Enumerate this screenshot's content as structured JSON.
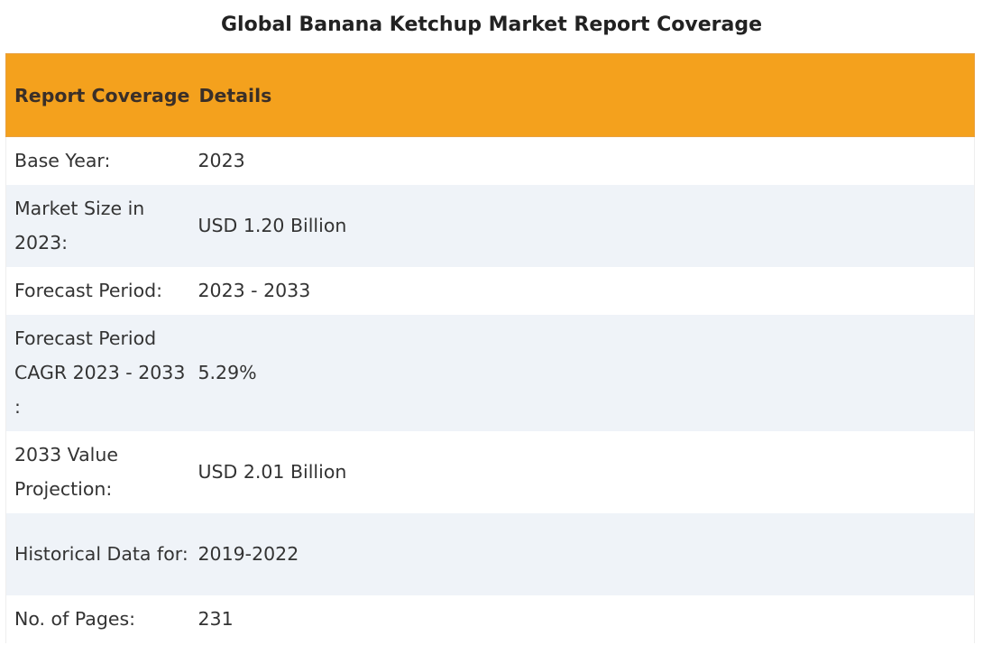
{
  "page": {
    "title": "Global Banana Ketchup Market Report Coverage"
  },
  "table": {
    "headers": {
      "col1": "Report Coverage",
      "col2": "Details"
    },
    "rows": [
      {
        "label": "Base Year:",
        "value": "2023"
      },
      {
        "label": "Market Size in 2023:",
        "value": "USD 1.20 Billion"
      },
      {
        "label": "Forecast Period:",
        "value": "2023 - 2033"
      },
      {
        "label": "Forecast Period CAGR 2023 - 2033 :",
        "value": "5.29%"
      },
      {
        "label": "2033 Value Projection:",
        "value": "USD 2.01 Billion"
      },
      {
        "label": "Historical Data for:",
        "value": "2019-2022"
      },
      {
        "label": "No. of Pages:",
        "value": "231"
      }
    ]
  },
  "colors": {
    "header_background": "#f4a11d",
    "stripe_background": "#eff3f8"
  }
}
